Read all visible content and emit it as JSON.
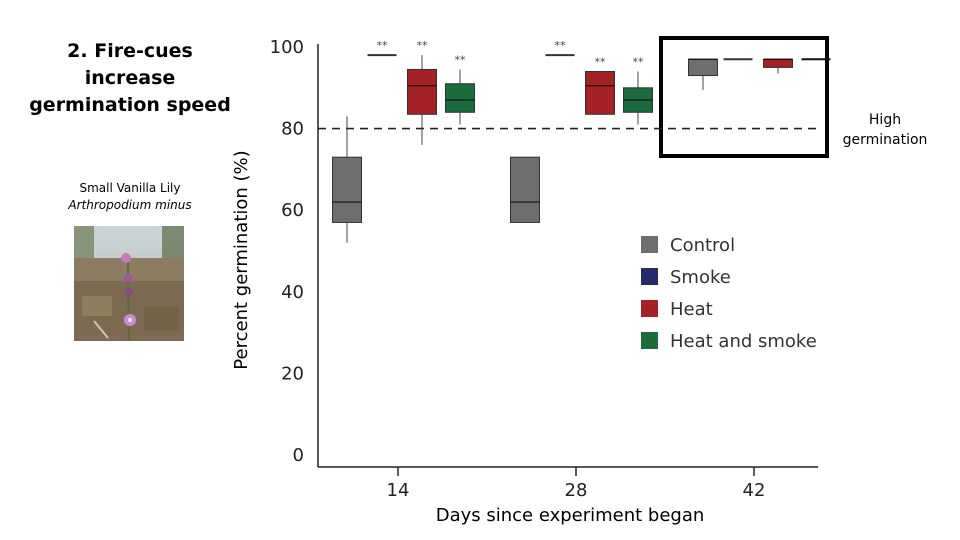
{
  "title": {
    "line1": "2. Fire-cues increase",
    "line2": "germination speed"
  },
  "species": {
    "common_name": "Small Vanilla Lily",
    "latin_name": "Arthropodium minus"
  },
  "annotation": {
    "line1": "High",
    "line2": "germination"
  },
  "colors": {
    "Control": "#6e6e6e",
    "Smoke": "#262a6b",
    "Heat": "#a42125",
    "Heat and smoke": "#1c6b3c"
  },
  "chart_data": {
    "type": "box",
    "xlabel": "Days since experiment began",
    "ylabel": "Percent germination (%)",
    "ylim": [
      0,
      100
    ],
    "yticks": [
      0,
      20,
      40,
      60,
      80,
      100
    ],
    "xticks": [
      14,
      28,
      42
    ],
    "reference_line": {
      "y": 80,
      "style": "dashed"
    },
    "legend": [
      "Control",
      "Smoke",
      "Heat",
      "Heat and smoke"
    ],
    "boxes": [
      {
        "day": 14,
        "group": "Control",
        "whisker_low": 52,
        "q1": 57,
        "median": 62,
        "q3": 73,
        "whisker_high": 83,
        "sig": ""
      },
      {
        "day": 14,
        "group": "Smoke",
        "whisker_low": null,
        "q1": 98,
        "median": 98,
        "q3": 98,
        "whisker_high": null,
        "sig": "**"
      },
      {
        "day": 14,
        "group": "Heat",
        "whisker_low": 76,
        "q1": 83.5,
        "median": 90.5,
        "q3": 94.5,
        "whisker_high": 98,
        "sig": "**"
      },
      {
        "day": 14,
        "group": "Heat and smoke",
        "whisker_low": 81,
        "q1": 84,
        "median": 87,
        "q3": 91,
        "whisker_high": 94.5,
        "sig": "**"
      },
      {
        "day": 28,
        "group": "Control",
        "whisker_low": null,
        "q1": 57,
        "median": 62,
        "q3": 73,
        "whisker_high": null,
        "sig": ""
      },
      {
        "day": 28,
        "group": "Smoke",
        "whisker_low": null,
        "q1": 98,
        "median": 98,
        "q3": 98,
        "whisker_high": null,
        "sig": "**"
      },
      {
        "day": 28,
        "group": "Heat",
        "whisker_low": null,
        "q1": 83.5,
        "median": 90.5,
        "q3": 94,
        "whisker_high": 94,
        "sig": "**"
      },
      {
        "day": 28,
        "group": "Heat and smoke",
        "whisker_low": 81,
        "q1": 84,
        "median": 87,
        "q3": 90,
        "whisker_high": 94,
        "sig": "**"
      },
      {
        "day": 42,
        "group": "Control",
        "whisker_low": 89.5,
        "q1": 93,
        "median": 97,
        "q3": 97,
        "whisker_high": 97,
        "sig": ""
      },
      {
        "day": 42,
        "group": "Smoke",
        "whisker_low": null,
        "q1": 97,
        "median": 97,
        "q3": 97,
        "whisker_high": null,
        "sig": ""
      },
      {
        "day": 42,
        "group": "Heat",
        "whisker_low": 93.5,
        "q1": 95,
        "median": 97,
        "q3": 97,
        "whisker_high": 97,
        "sig": ""
      },
      {
        "day": 42,
        "group": "Heat and smoke",
        "whisker_low": null,
        "q1": 97,
        "median": 97,
        "q3": 97,
        "whisker_high": null,
        "sig": ""
      }
    ]
  }
}
